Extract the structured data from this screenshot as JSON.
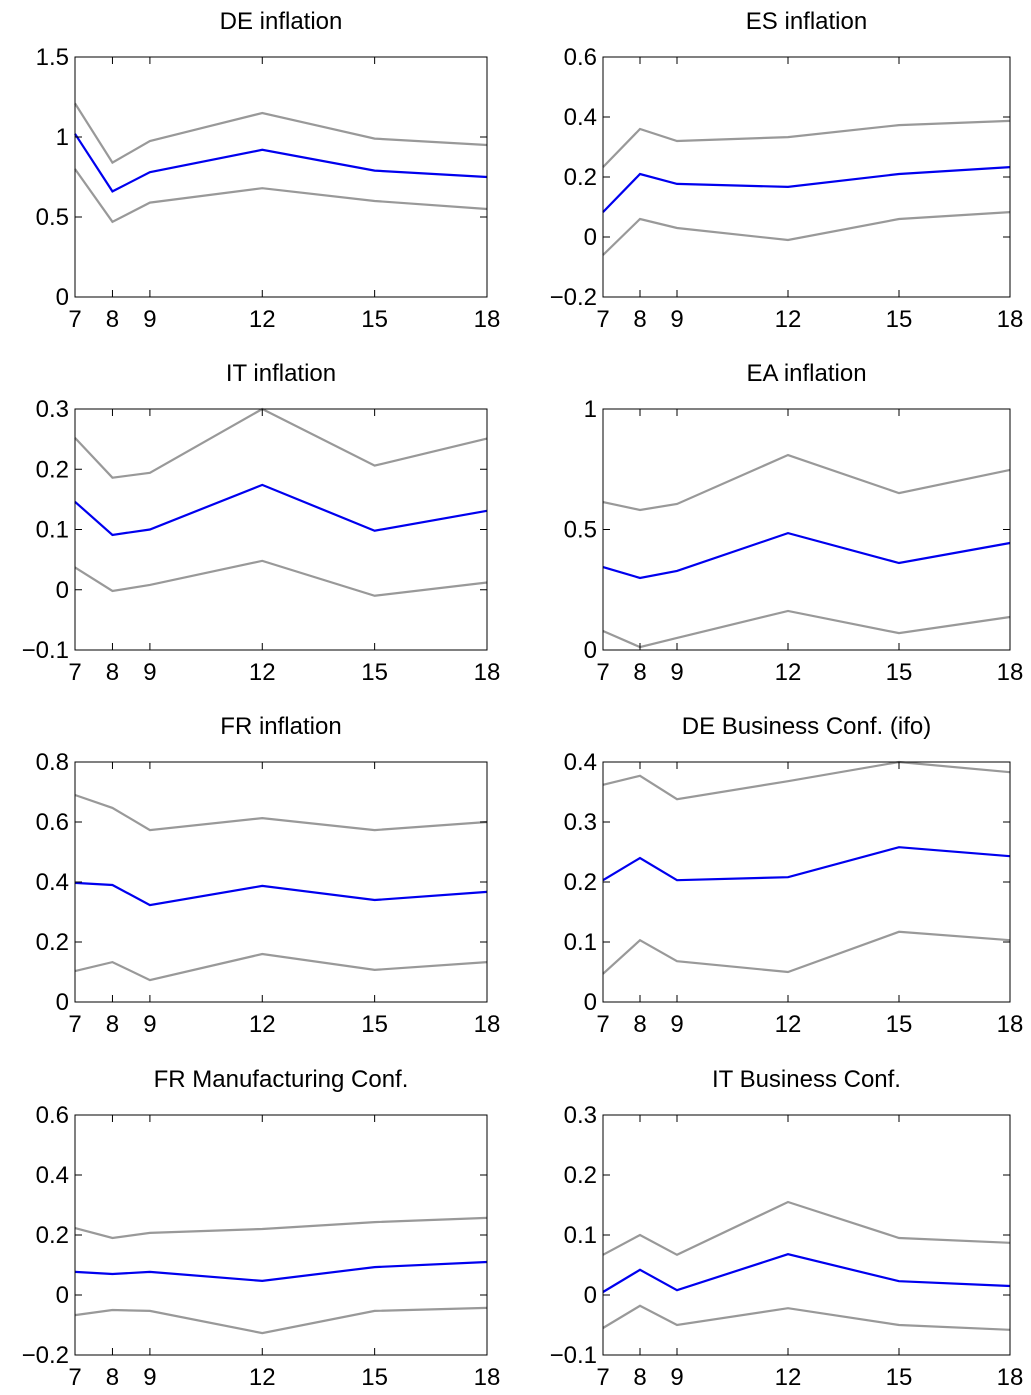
{
  "chart_data": [
    {
      "type": "line",
      "title": "DE inflation",
      "x": [
        7,
        8,
        9,
        12,
        15,
        18
      ],
      "xlim": [
        7,
        18
      ],
      "xticks": [
        7,
        8,
        9,
        12,
        15,
        18
      ],
      "ylim": [
        0,
        1.5
      ],
      "yticks": [
        0,
        0.5,
        1,
        1.5
      ],
      "series": [
        {
          "color": "#999999",
          "values": [
            1.21,
            0.84,
            0.975,
            1.15,
            0.99,
            0.95
          ]
        },
        {
          "color": "#0000ee",
          "values": [
            1.02,
            0.66,
            0.78,
            0.92,
            0.79,
            0.75
          ]
        },
        {
          "color": "#999999",
          "values": [
            0.8,
            0.47,
            0.59,
            0.68,
            0.6,
            0.55
          ]
        }
      ]
    },
    {
      "type": "line",
      "title": "ES inflation",
      "x": [
        7,
        8,
        9,
        12,
        15,
        18
      ],
      "xlim": [
        7,
        18
      ],
      "xticks": [
        7,
        8,
        9,
        12,
        15,
        18
      ],
      "ylim": [
        -0.2,
        0.6
      ],
      "yticks": [
        {
          "value": -0.2,
          "label": "−0.2"
        },
        0,
        0.2,
        0.4,
        0.6
      ],
      "series": [
        {
          "color": "#999999",
          "values": [
            0.233,
            0.36,
            0.32,
            0.333,
            0.373,
            0.387
          ]
        },
        {
          "color": "#0000ee",
          "values": [
            0.083,
            0.21,
            0.177,
            0.167,
            0.21,
            0.233
          ]
        },
        {
          "color": "#999999",
          "values": [
            -0.06,
            0.06,
            0.03,
            -0.01,
            0.06,
            0.083
          ]
        }
      ]
    },
    {
      "type": "line",
      "title": "IT inflation",
      "x": [
        7,
        8,
        9,
        12,
        15,
        18
      ],
      "xlim": [
        7,
        18
      ],
      "xticks": [
        7,
        8,
        9,
        12,
        15,
        18
      ],
      "ylim": [
        -0.1,
        0.3
      ],
      "yticks": [
        {
          "value": -0.1,
          "label": "−0.1"
        },
        0,
        0.1,
        0.2,
        0.3
      ],
      "series": [
        {
          "color": "#999999",
          "values": [
            0.252,
            0.186,
            0.194,
            0.3,
            0.206,
            0.251
          ]
        },
        {
          "color": "#0000ee",
          "values": [
            0.146,
            0.091,
            0.1,
            0.174,
            0.098,
            0.131
          ]
        },
        {
          "color": "#999999",
          "values": [
            0.037,
            -0.002,
            0.008,
            0.048,
            -0.01,
            0.012
          ]
        }
      ]
    },
    {
      "type": "line",
      "title": "EA inflation",
      "x": [
        7,
        8,
        9,
        12,
        15,
        18
      ],
      "xlim": [
        7,
        18
      ],
      "xticks": [
        7,
        8,
        9,
        12,
        15,
        18
      ],
      "ylim": [
        0,
        1
      ],
      "yticks": [
        0,
        0.5,
        1
      ],
      "series": [
        {
          "color": "#999999",
          "values": [
            0.614,
            0.581,
            0.606,
            0.809,
            0.651,
            0.747
          ]
        },
        {
          "color": "#0000ee",
          "values": [
            0.344,
            0.299,
            0.328,
            0.485,
            0.361,
            0.444
          ]
        },
        {
          "color": "#999999",
          "values": [
            0.079,
            0.012,
            0.05,
            0.162,
            0.07,
            0.137
          ]
        }
      ]
    },
    {
      "type": "line",
      "title": "FR inflation",
      "x": [
        7,
        8,
        9,
        12,
        15,
        18
      ],
      "xlim": [
        7,
        18
      ],
      "xticks": [
        7,
        8,
        9,
        12,
        15,
        18
      ],
      "ylim": [
        0,
        0.8
      ],
      "yticks": [
        0,
        0.2,
        0.4,
        0.6,
        0.8
      ],
      "series": [
        {
          "color": "#999999",
          "values": [
            0.69,
            0.647,
            0.573,
            0.613,
            0.573,
            0.6
          ]
        },
        {
          "color": "#0000ee",
          "values": [
            0.397,
            0.39,
            0.323,
            0.387,
            0.34,
            0.367
          ]
        },
        {
          "color": "#999999",
          "values": [
            0.103,
            0.133,
            0.073,
            0.16,
            0.107,
            0.133
          ]
        }
      ]
    },
    {
      "type": "line",
      "title": "DE Business Conf. (ifo)",
      "x": [
        7,
        8,
        9,
        12,
        15,
        18
      ],
      "xlim": [
        7,
        18
      ],
      "xticks": [
        7,
        8,
        9,
        12,
        15,
        18
      ],
      "ylim": [
        0,
        0.4
      ],
      "yticks": [
        0,
        0.1,
        0.2,
        0.3,
        0.4
      ],
      "series": [
        {
          "color": "#999999",
          "values": [
            0.362,
            0.377,
            0.338,
            0.368,
            0.4,
            0.383
          ]
        },
        {
          "color": "#0000ee",
          "values": [
            0.203,
            0.24,
            0.203,
            0.208,
            0.258,
            0.243
          ]
        },
        {
          "color": "#999999",
          "values": [
            0.047,
            0.103,
            0.068,
            0.05,
            0.117,
            0.103
          ]
        }
      ]
    },
    {
      "type": "line",
      "title": "FR Manufacturing Conf.",
      "x": [
        7,
        8,
        9,
        12,
        15,
        18
      ],
      "xlim": [
        7,
        18
      ],
      "xticks": [
        7,
        8,
        9,
        12,
        15,
        18
      ],
      "ylim": [
        -0.2,
        0.6
      ],
      "yticks": [
        {
          "value": -0.2,
          "label": "−0.2"
        },
        0,
        0.2,
        0.4,
        0.6
      ],
      "series": [
        {
          "color": "#999999",
          "values": [
            0.223,
            0.19,
            0.207,
            0.22,
            0.243,
            0.257
          ]
        },
        {
          "color": "#0000ee",
          "values": [
            0.077,
            0.07,
            0.077,
            0.047,
            0.093,
            0.11
          ]
        },
        {
          "color": "#999999",
          "values": [
            -0.067,
            -0.05,
            -0.053,
            -0.127,
            -0.053,
            -0.043
          ]
        }
      ]
    },
    {
      "type": "line",
      "title": "IT Business Conf.",
      "x": [
        7,
        8,
        9,
        12,
        15,
        18
      ],
      "xlim": [
        7,
        18
      ],
      "xticks": [
        7,
        8,
        9,
        12,
        15,
        18
      ],
      "ylim": [
        -0.1,
        0.3
      ],
      "yticks": [
        {
          "value": -0.1,
          "label": "−0.1"
        },
        0,
        0.1,
        0.2,
        0.3
      ],
      "series": [
        {
          "color": "#999999",
          "values": [
            0.067,
            0.1,
            0.067,
            0.155,
            0.095,
            0.087
          ]
        },
        {
          "color": "#0000ee",
          "values": [
            0.005,
            0.042,
            0.008,
            0.068,
            0.023,
            0.015
          ]
        },
        {
          "color": "#999999",
          "values": [
            -0.055,
            -0.018,
            -0.05,
            -0.022,
            -0.05,
            -0.058
          ]
        }
      ]
    }
  ]
}
